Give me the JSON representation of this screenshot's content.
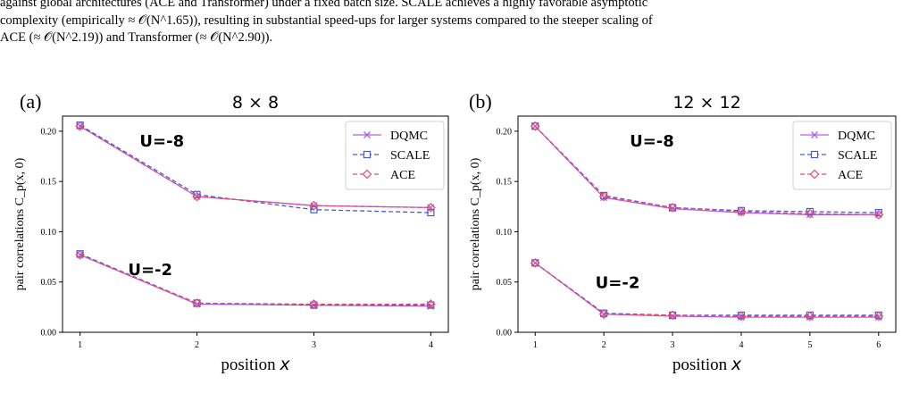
{
  "caption": {
    "line1": "against global architectures (ACE and Transformer) under a fixed batch size. SCALE achieves a highly favorable asymptotic",
    "line2": "complexity (empirically ≈ 𝒪(N^1.65)), resulting in substantial speed-ups for larger systems compared to the steeper scaling of",
    "line3": "ACE (≈ 𝒪(N^2.19)) and Transformer (≈ 𝒪(N^2.90))."
  },
  "colors": {
    "dqmc": "#b060e0",
    "scale": "#4a5ad8",
    "ace": "#e84a6a"
  },
  "chart_data": [
    {
      "type": "line",
      "panel_label": "(a)",
      "title": "8 × 8",
      "xlabel": "position x",
      "ylabel": "pair correlations C_p(x, 0)",
      "x": [
        1,
        2,
        3,
        4
      ],
      "xticks": [
        "1",
        "2",
        "3",
        "4"
      ],
      "xlim": [
        0.85,
        4.15
      ],
      "ylim": [
        0,
        0.215
      ],
      "yticks": [
        "0.00",
        "0.05",
        "0.10",
        "0.15",
        "0.20"
      ],
      "annotations": [
        {
          "text": "U=-8",
          "x": 1.7,
          "y": 0.185
        },
        {
          "text": "U=-2",
          "x": 1.6,
          "y": 0.057
        }
      ],
      "legend": "top-right",
      "series": [
        {
          "name": "DQMC",
          "marker": "x",
          "dash": "solid",
          "groups": [
            [
              0.205,
              0.135,
              0.126,
              0.124
            ],
            [
              0.077,
              0.028,
              0.027,
              0.026
            ]
          ]
        },
        {
          "name": "SCALE",
          "marker": "square",
          "dash": "dashed",
          "groups": [
            [
              0.206,
              0.137,
              0.122,
              0.119
            ],
            [
              0.078,
              0.029,
              0.027,
              0.027
            ]
          ]
        },
        {
          "name": "ACE",
          "marker": "diamond",
          "dash": "dashed",
          "groups": [
            [
              0.205,
              0.135,
              0.126,
              0.124
            ],
            [
              0.077,
              0.029,
              0.028,
              0.028
            ]
          ]
        }
      ]
    },
    {
      "type": "line",
      "panel_label": "(b)",
      "title": "12 × 12",
      "xlabel": "position x",
      "ylabel": "pair correlations C_p(x, 0)",
      "x": [
        1,
        2,
        3,
        4,
        5,
        6
      ],
      "xticks": [
        "1",
        "2",
        "3",
        "4",
        "5",
        "6"
      ],
      "xlim": [
        0.75,
        6.25
      ],
      "ylim": [
        0,
        0.215
      ],
      "yticks": [
        "0.00",
        "0.05",
        "0.10",
        "0.15",
        "0.20"
      ],
      "annotations": [
        {
          "text": "U=-8",
          "x": 2.7,
          "y": 0.185
        },
        {
          "text": "U=-2",
          "x": 2.2,
          "y": 0.044
        }
      ],
      "legend": "top-right",
      "series": [
        {
          "name": "DQMC",
          "marker": "x",
          "dash": "solid",
          "groups": [
            [
              0.205,
              0.134,
              0.123,
              0.119,
              0.117,
              0.117
            ],
            [
              0.069,
              0.018,
              0.016,
              0.015,
              0.015,
              0.015
            ]
          ]
        },
        {
          "name": "SCALE",
          "marker": "square",
          "dash": "dashed",
          "groups": [
            [
              0.205,
              0.136,
              0.124,
              0.121,
              0.12,
              0.119
            ],
            [
              0.069,
              0.019,
              0.017,
              0.017,
              0.017,
              0.017
            ]
          ]
        },
        {
          "name": "ACE",
          "marker": "diamond",
          "dash": "dashed",
          "groups": [
            [
              0.205,
              0.135,
              0.124,
              0.12,
              0.118,
              0.117
            ],
            [
              0.069,
              0.018,
              0.017,
              0.016,
              0.016,
              0.016
            ]
          ]
        }
      ]
    }
  ]
}
